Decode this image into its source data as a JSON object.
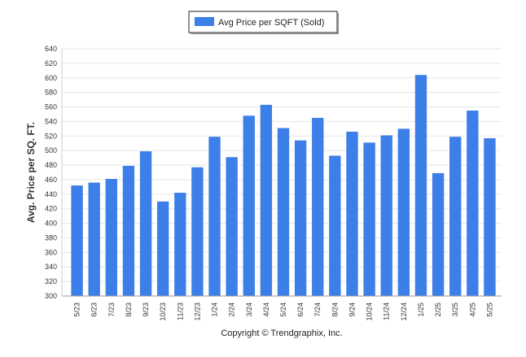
{
  "chart_data": {
    "type": "bar",
    "title": "",
    "xlabel": "",
    "ylabel": "Avg. Price per SQ. FT.",
    "ylim": [
      300,
      640
    ],
    "yticks": [
      300,
      320,
      340,
      360,
      380,
      400,
      420,
      440,
      460,
      480,
      500,
      520,
      540,
      560,
      580,
      600,
      620,
      640
    ],
    "grid": true,
    "legend_position": "top-center",
    "categories": [
      "5/23",
      "6/23",
      "7/23",
      "8/23",
      "9/23",
      "10/23",
      "11/23",
      "12/23",
      "1/24",
      "2/24",
      "3/24",
      "4/24",
      "5/24",
      "6/24",
      "7/24",
      "8/24",
      "9/24",
      "10/24",
      "11/24",
      "12/24",
      "1/25",
      "2/25",
      "3/25",
      "4/25",
      "5/25"
    ],
    "series": [
      {
        "name": "Avg Price per SQFT (Sold)",
        "color": "#3d7fe8",
        "values": [
          452,
          456,
          461,
          479,
          499,
          430,
          442,
          477,
          519,
          491,
          548,
          563,
          531,
          514,
          545,
          493,
          526,
          511,
          521,
          530,
          604,
          469,
          519,
          555,
          517
        ]
      }
    ],
    "footer": "Copyright © Trendgraphix, Inc."
  }
}
